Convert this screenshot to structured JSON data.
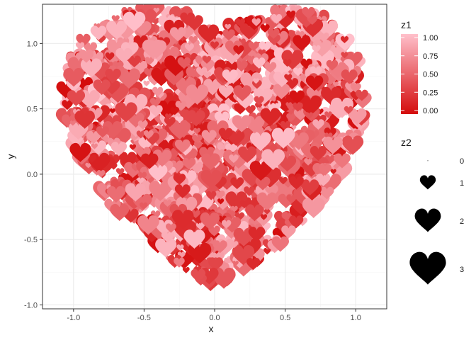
{
  "chart_data": {
    "type": "scatter",
    "title": "",
    "xlabel": "x",
    "ylabel": "y",
    "xlim": [
      -1.22,
      1.22
    ],
    "ylim": [
      -1.03,
      1.3
    ],
    "x_ticks": [
      -1.0,
      -0.5,
      0.0,
      0.5,
      1.0
    ],
    "x_tick_labels": [
      "-1.0",
      "-0.5",
      "0.0",
      "0.5",
      "1.0"
    ],
    "y_ticks": [
      -1.0,
      -0.5,
      0.0,
      0.5,
      1.0
    ],
    "y_tick_labels": [
      "-1.0",
      "-0.5",
      "0.0",
      "0.5",
      "1.0"
    ],
    "grid": true,
    "shape": "heart-icon",
    "point_count": 1400,
    "seed": 20240214,
    "color_aesthetic": {
      "name": "z1",
      "low_color": "#d40c0c",
      "high_color": "#ffc0cb",
      "range": [
        0,
        1
      ],
      "breaks": [
        1.0,
        0.75,
        0.5,
        0.25,
        0.0
      ],
      "break_labels": [
        "1.00",
        "0.75",
        "0.50",
        "0.25",
        "0.00"
      ]
    },
    "size_aesthetic": {
      "name": "z2",
      "breaks": [
        0,
        1,
        2,
        3
      ],
      "break_labels": [
        "0",
        "1",
        "2",
        "3"
      ],
      "legend_color": "#000000"
    },
    "legend_position": "right"
  },
  "colors": {
    "panel_border": "#333333",
    "grid_major": "#ebebeb",
    "grid_minor": "#f5f5f5",
    "background": "#ffffff"
  }
}
